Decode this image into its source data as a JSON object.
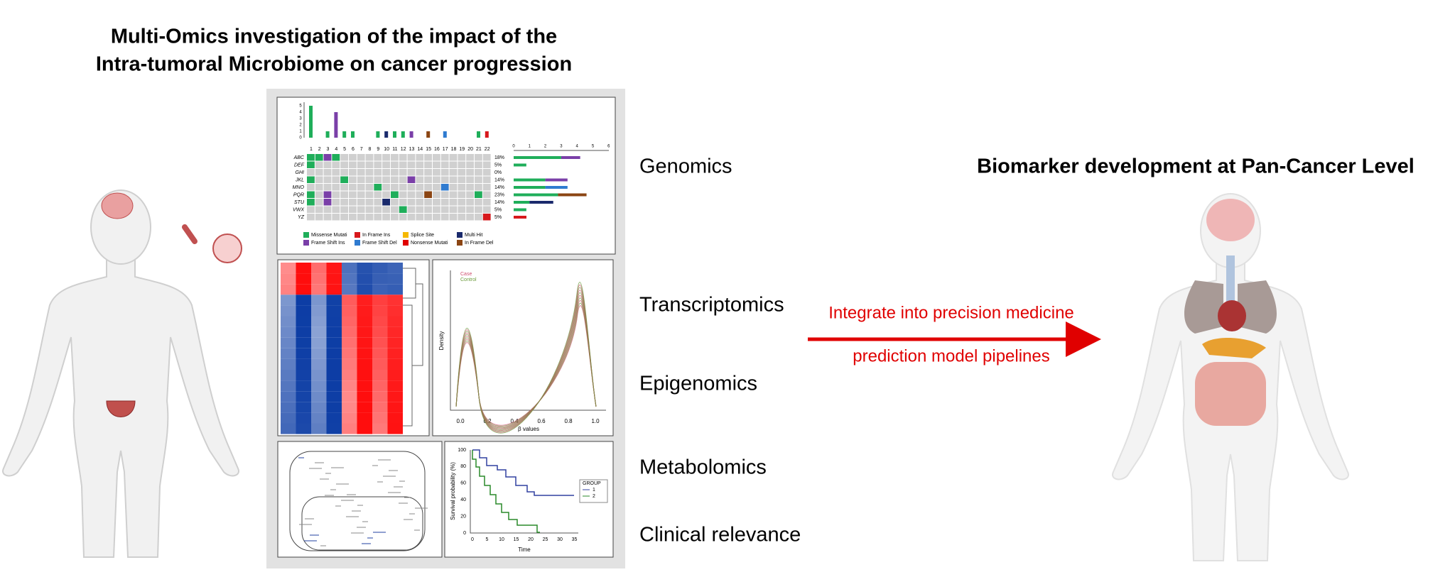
{
  "header": {
    "title_lines": [
      "Multi-Omics investigation of the impact of the",
      "Intra-tumoral Microbiome on cancer progression"
    ]
  },
  "omics_labels": [
    "Genomics",
    "Transcriptomics",
    "Epigenomics",
    "Metabolomics",
    "Clinical relevance"
  ],
  "arrow": {
    "lines": [
      "Integrate into precision medicine",
      "prediction model pipelines"
    ]
  },
  "right_title": "Biomarker development at Pan-Cancer Level",
  "oncoplot": {
    "top_axis": [
      0,
      1,
      2,
      3,
      4,
      5
    ],
    "columns": [
      1,
      2,
      3,
      4,
      5,
      6,
      7,
      8,
      9,
      10,
      11,
      12,
      13,
      14,
      15,
      16,
      17,
      18,
      19,
      20,
      21,
      22
    ],
    "genes": [
      "ABC",
      "DEF",
      "GHI",
      "JKL",
      "MNO",
      "PQR",
      "STU",
      "VWX",
      "YZ"
    ],
    "percents": [
      "18%",
      "5%",
      "0%",
      "14%",
      "14%",
      "23%",
      "14%",
      "5%",
      "5%"
    ],
    "side_axis": [
      0,
      1,
      2,
      3,
      4,
      5,
      6
    ],
    "legend": [
      "Missense Mutati",
      "In Frame Ins",
      "Splice Site",
      "Multi Hit",
      "Frame Shift Ins",
      "Frame Shift Del",
      "Nonsense Mutati",
      "In Frame Del"
    ]
  },
  "density": {
    "legend": [
      "Case",
      "Control"
    ],
    "ylabel": "Density",
    "xlabel": "β values",
    "xticks": [
      "0.0",
      "0.2",
      "0.4",
      "0.6",
      "0.8",
      "1.0"
    ]
  },
  "survival": {
    "ylabel": "Survival probability (%)",
    "xlabel": "Time",
    "yticks": [
      0,
      20,
      40,
      60,
      80,
      100
    ],
    "xticks": [
      0,
      5,
      10,
      15,
      20,
      25,
      30,
      35
    ],
    "legend_title": "GROUP",
    "groups": [
      "1",
      "2"
    ]
  }
}
